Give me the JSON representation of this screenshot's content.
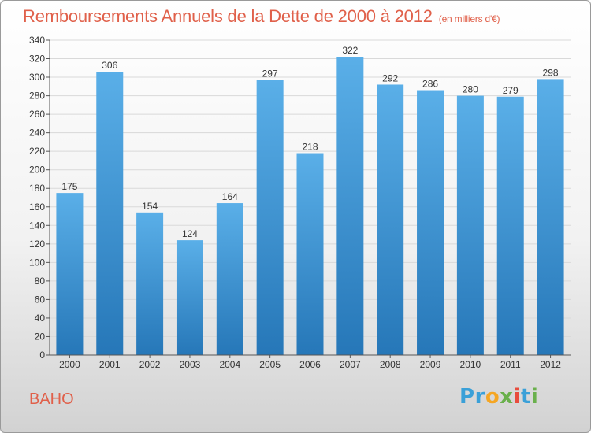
{
  "header": {
    "title": "Remboursements Annuels de la Dette de 2000 à 2012",
    "unit": "(en milliers d'€)"
  },
  "footer": {
    "city": "BAHO",
    "logo_letters": [
      {
        "char": "P",
        "color": "#3aa0d8"
      },
      {
        "char": "r",
        "color": "#3aa0d8"
      },
      {
        "char": "o",
        "color": "#f5a623"
      },
      {
        "char": "x",
        "color": "#6ab04c"
      },
      {
        "char": "i",
        "color": "#e84c3d"
      },
      {
        "char": "t",
        "color": "#3aa0d8"
      },
      {
        "char": "i",
        "color": "#6ab04c"
      }
    ]
  },
  "colors": {
    "bar_top": "#5aafe8",
    "bar_bottom": "#2677b8",
    "title": "#e0604a",
    "grid": "#d9d9d9"
  },
  "chart_data": {
    "type": "bar",
    "categories": [
      "2000",
      "2001",
      "2002",
      "2003",
      "2004",
      "2005",
      "2006",
      "2007",
      "2008",
      "2009",
      "2010",
      "2011",
      "2012"
    ],
    "values": [
      175,
      306,
      154,
      124,
      164,
      297,
      218,
      322,
      292,
      286,
      280,
      279,
      298
    ],
    "ylim": [
      0,
      340
    ],
    "yticks": [
      0,
      20,
      40,
      60,
      80,
      100,
      120,
      140,
      160,
      180,
      200,
      220,
      240,
      260,
      280,
      300,
      320,
      340
    ],
    "grid": true,
    "data_labels": true
  }
}
